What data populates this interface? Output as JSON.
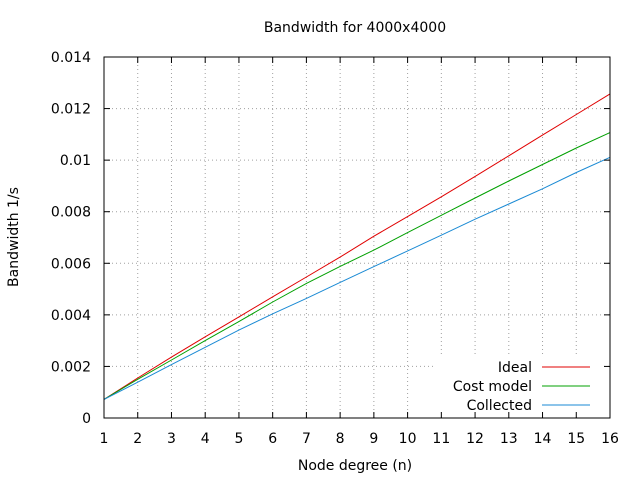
{
  "chart_data": {
    "type": "line",
    "title": "Bandwidth for 4000x4000",
    "xlabel": "Node degree (n)",
    "ylabel": "Bandwidth 1/s",
    "xlim": [
      1,
      16
    ],
    "ylim": [
      0,
      0.014
    ],
    "grid": true,
    "legend_position": "bottom-right",
    "xticks": [
      1,
      2,
      3,
      4,
      5,
      6,
      7,
      8,
      9,
      10,
      11,
      12,
      13,
      14,
      15,
      16
    ],
    "yticks": [
      "0",
      "0.002",
      "0.004",
      "0.006",
      "0.008",
      "0.01",
      "0.012",
      "0.014"
    ],
    "x": [
      1,
      2,
      3,
      4,
      5,
      6,
      7,
      8,
      9,
      10,
      11,
      12,
      13,
      14,
      15,
      16
    ],
    "series": [
      {
        "name": "Ideal",
        "color": "#e00000",
        "values": [
          0.00072,
          0.00155,
          0.00236,
          0.00315,
          0.00392,
          0.0047,
          0.00547,
          0.00624,
          0.00705,
          0.00781,
          0.00858,
          0.00937,
          0.01017,
          0.01097,
          0.01177,
          0.01257
        ]
      },
      {
        "name": "Cost model",
        "color": "#00a000",
        "values": [
          0.00072,
          0.0015,
          0.00225,
          0.003,
          0.00374,
          0.0045,
          0.00522,
          0.00588,
          0.00651,
          0.00719,
          0.00786,
          0.00853,
          0.00919,
          0.00983,
          0.01047,
          0.01107
        ]
      },
      {
        "name": "Collected",
        "color": "#1a8ad4",
        "values": [
          0.00072,
          0.00139,
          0.00207,
          0.00274,
          0.00341,
          0.00404,
          0.00464,
          0.00526,
          0.00587,
          0.00648,
          0.00709,
          0.00771,
          0.0083,
          0.00889,
          0.00952,
          0.01011
        ]
      }
    ]
  }
}
